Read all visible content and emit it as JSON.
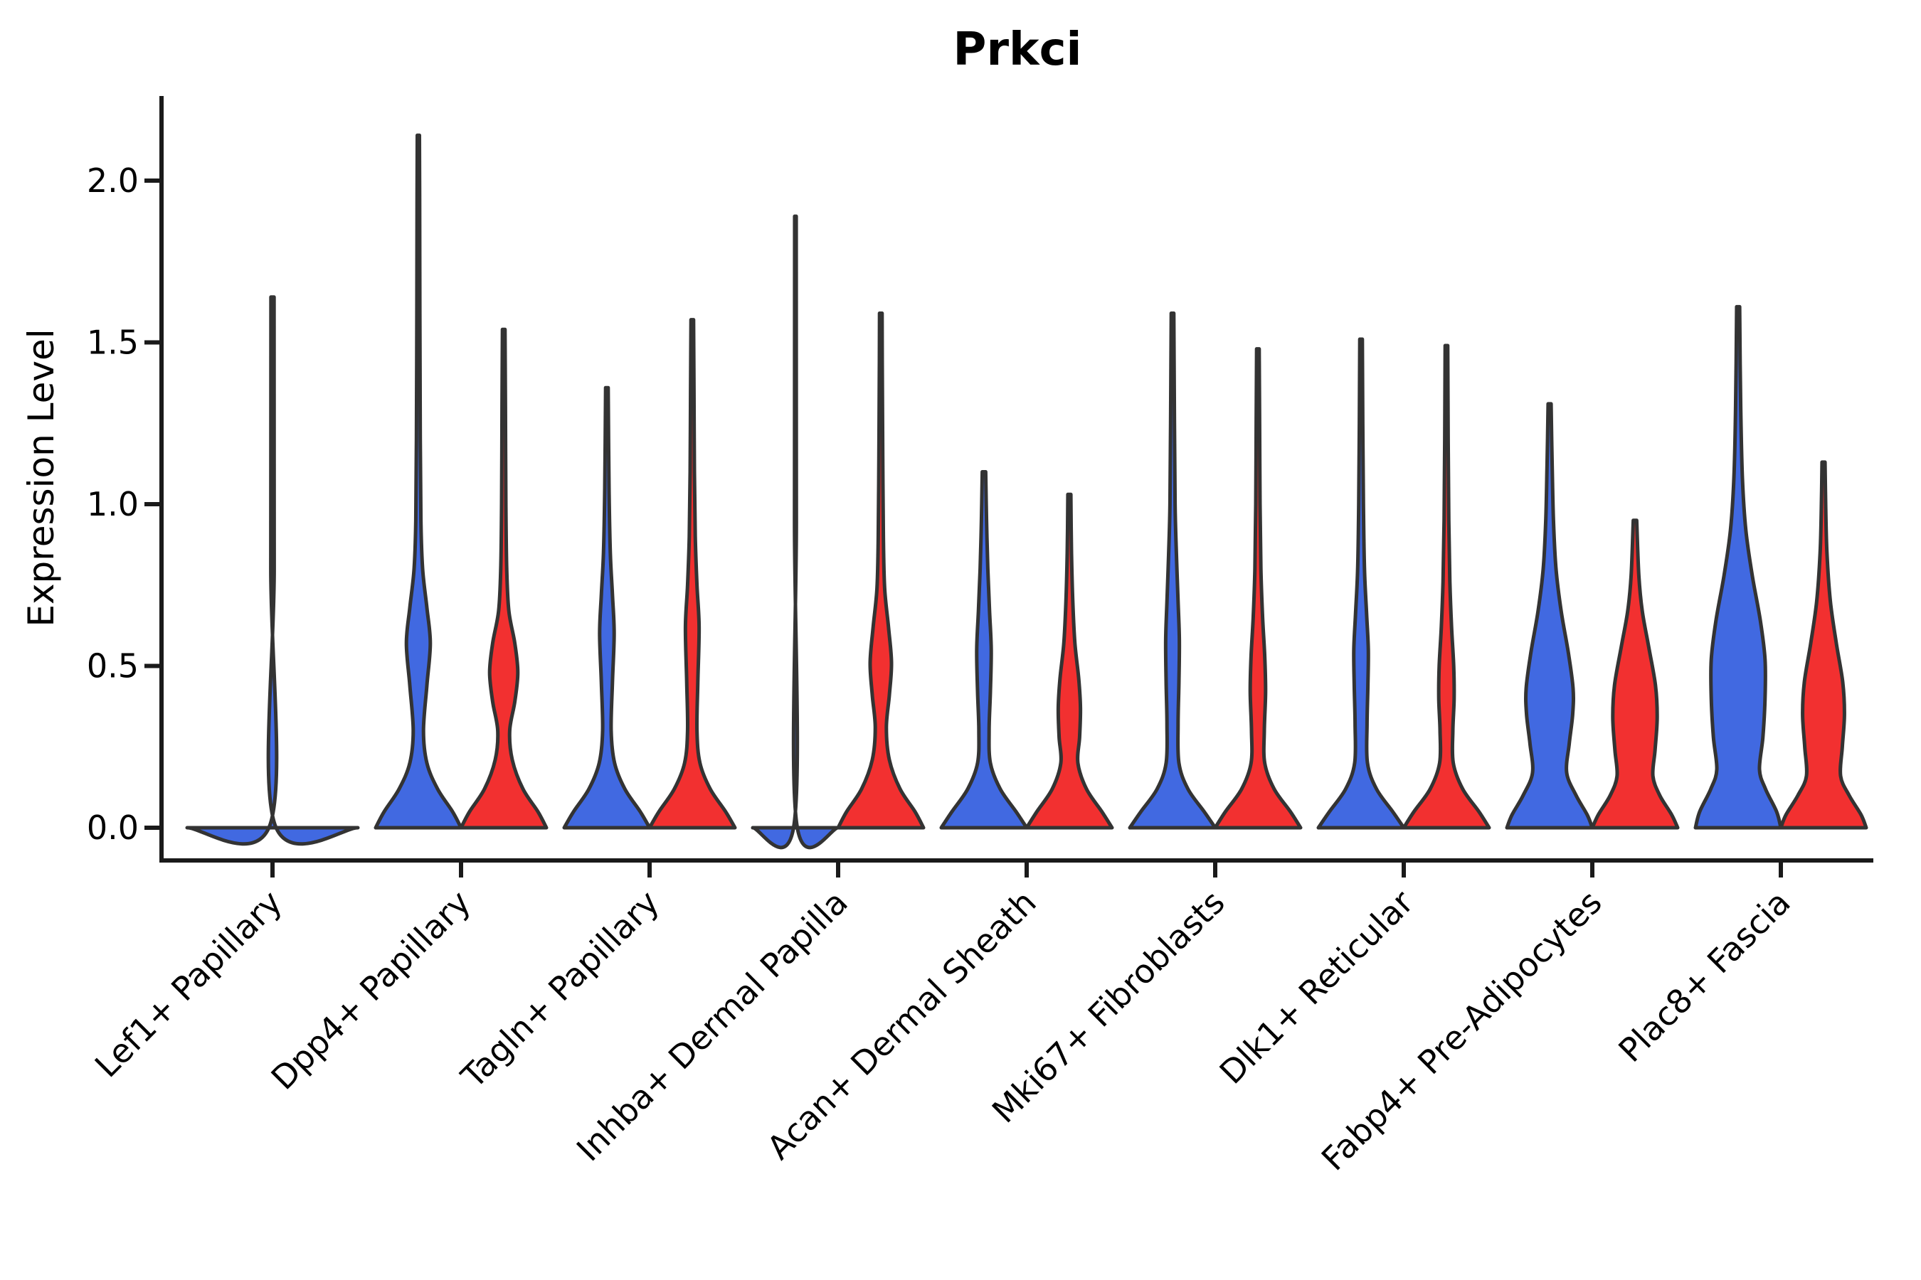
{
  "figure": {
    "title": "Prkci",
    "y_axis_label": "Expression Level"
  },
  "y_axis": {
    "tick_labels": [
      "0.0",
      "0.5",
      "1.0",
      "1.5",
      "2.0"
    ],
    "tick_values": [
      0.0,
      0.5,
      1.0,
      1.5,
      2.0
    ],
    "range_max": 2.25
  },
  "colors": {
    "blue_fill": "#4169E1",
    "red_fill": "#F23030",
    "outline": "#333333",
    "axis": "#1a1a1a",
    "text": "#000000"
  },
  "chart_data": {
    "type": "violin",
    "title": "Prkci",
    "ylabel": "Expression Level",
    "ylim": [
      0,
      2.25
    ],
    "grid": false,
    "legend": "none",
    "categories": [
      "Lef1+ Papillary",
      "Dpp4+ Papillary",
      "Tagln+ Papillary",
      "Inhba+ Dermal Papilla",
      "Acan+ Dermal Sheath",
      "Mki67+ Fibroblasts",
      "Dlk1+ Reticular",
      "Fabp4+ Pre-Adipocytes",
      "Plac8+ Fascia"
    ],
    "series": [
      {
        "name": "blue",
        "max_values": [
          1.64,
          2.14,
          1.36,
          1.89,
          1.1,
          1.59,
          1.51,
          1.31,
          1.61
        ]
      },
      {
        "name": "red",
        "max_values": [
          null,
          1.54,
          1.57,
          1.59,
          1.03,
          1.48,
          1.49,
          0.95,
          1.13
        ]
      }
    ],
    "groups": [
      {
        "label": "Lef1+ Papillary",
        "violins": [
          {
            "color": "blue",
            "position": "center",
            "width_scale": 2,
            "tip": 1.64,
            "flat": true,
            "profile": [
              [
                0,
                1.0
              ],
              [
                0.012,
                0.025
              ],
              [
                0.8,
                0.02
              ],
              [
                1.64,
                0.018
              ]
            ]
          }
        ]
      },
      {
        "label": "Dpp4+ Papillary",
        "violins": [
          {
            "color": "blue",
            "position": "left",
            "width_scale": 1,
            "tip": 2.14,
            "profile": [
              [
                0,
                1.0
              ],
              [
                0.05,
                0.8
              ],
              [
                0.12,
                0.45
              ],
              [
                0.2,
                0.2
              ],
              [
                0.3,
                0.12
              ],
              [
                0.44,
                0.2
              ],
              [
                0.57,
                0.28
              ],
              [
                0.68,
                0.2
              ],
              [
                0.8,
                0.1
              ],
              [
                0.95,
                0.06
              ],
              [
                1.2,
                0.045
              ],
              [
                1.6,
                0.035
              ],
              [
                1.95,
                0.03
              ],
              [
                2.14,
                0.025
              ]
            ]
          },
          {
            "color": "red",
            "position": "right",
            "width_scale": 1,
            "tip": 1.54,
            "profile": [
              [
                0,
                1.0
              ],
              [
                0.05,
                0.8
              ],
              [
                0.12,
                0.45
              ],
              [
                0.21,
                0.2
              ],
              [
                0.3,
                0.14
              ],
              [
                0.39,
                0.26
              ],
              [
                0.48,
                0.33
              ],
              [
                0.57,
                0.26
              ],
              [
                0.67,
                0.12
              ],
              [
                0.8,
                0.07
              ],
              [
                1.0,
                0.05
              ],
              [
                1.3,
                0.04
              ],
              [
                1.54,
                0.03
              ]
            ]
          }
        ]
      },
      {
        "label": "Tagln+ Papillary",
        "violins": [
          {
            "color": "blue",
            "position": "left",
            "width_scale": 1,
            "tip": 1.36,
            "profile": [
              [
                0,
                1.0
              ],
              [
                0.05,
                0.78
              ],
              [
                0.12,
                0.42
              ],
              [
                0.2,
                0.18
              ],
              [
                0.3,
                0.1
              ],
              [
                0.45,
                0.13
              ],
              [
                0.6,
                0.17
              ],
              [
                0.72,
                0.13
              ],
              [
                0.85,
                0.08
              ],
              [
                1.05,
                0.05
              ],
              [
                1.36,
                0.03
              ]
            ]
          },
          {
            "color": "red",
            "position": "right",
            "width_scale": 1,
            "tip": 1.57,
            "profile": [
              [
                0,
                1.0
              ],
              [
                0.05,
                0.78
              ],
              [
                0.12,
                0.42
              ],
              [
                0.2,
                0.18
              ],
              [
                0.3,
                0.11
              ],
              [
                0.45,
                0.13
              ],
              [
                0.62,
                0.16
              ],
              [
                0.75,
                0.11
              ],
              [
                0.9,
                0.07
              ],
              [
                1.1,
                0.05
              ],
              [
                1.35,
                0.04
              ],
              [
                1.57,
                0.03
              ]
            ]
          }
        ]
      },
      {
        "label": "Inhba+ Dermal Papilla",
        "violins": [
          {
            "color": "blue",
            "position": "left",
            "width_scale": 1,
            "tip": 1.89,
            "flat": true,
            "profile": [
              [
                0,
                1.0
              ],
              [
                0.012,
                0.03
              ],
              [
                0.95,
                0.022
              ],
              [
                1.89,
                0.018
              ]
            ]
          },
          {
            "color": "red",
            "position": "right",
            "width_scale": 1,
            "tip": 1.59,
            "profile": [
              [
                0,
                1.0
              ],
              [
                0.05,
                0.8
              ],
              [
                0.12,
                0.45
              ],
              [
                0.21,
                0.2
              ],
              [
                0.31,
                0.13
              ],
              [
                0.41,
                0.2
              ],
              [
                0.51,
                0.25
              ],
              [
                0.62,
                0.18
              ],
              [
                0.74,
                0.09
              ],
              [
                0.9,
                0.06
              ],
              [
                1.15,
                0.045
              ],
              [
                1.4,
                0.035
              ],
              [
                1.59,
                0.03
              ]
            ]
          }
        ]
      },
      {
        "label": "Acan+ Dermal Sheath",
        "violins": [
          {
            "color": "blue",
            "position": "left",
            "width_scale": 1,
            "tip": 1.1,
            "profile": [
              [
                0,
                1.0
              ],
              [
                0.05,
                0.75
              ],
              [
                0.12,
                0.38
              ],
              [
                0.2,
                0.15
              ],
              [
                0.3,
                0.12
              ],
              [
                0.42,
                0.15
              ],
              [
                0.55,
                0.17
              ],
              [
                0.67,
                0.13
              ],
              [
                0.8,
                0.09
              ],
              [
                0.95,
                0.06
              ],
              [
                1.1,
                0.04
              ]
            ]
          },
          {
            "color": "red",
            "position": "right",
            "width_scale": 1,
            "tip": 1.03,
            "profile": [
              [
                0,
                1.0
              ],
              [
                0.05,
                0.76
              ],
              [
                0.12,
                0.4
              ],
              [
                0.2,
                0.2
              ],
              [
                0.28,
                0.24
              ],
              [
                0.37,
                0.26
              ],
              [
                0.46,
                0.22
              ],
              [
                0.57,
                0.13
              ],
              [
                0.7,
                0.08
              ],
              [
                0.85,
                0.05
              ],
              [
                1.03,
                0.035
              ]
            ]
          }
        ]
      },
      {
        "label": "Mki67+ Fibroblasts",
        "violins": [
          {
            "color": "blue",
            "position": "left",
            "width_scale": 1,
            "tip": 1.59,
            "profile": [
              [
                0,
                1.0
              ],
              [
                0.05,
                0.74
              ],
              [
                0.12,
                0.36
              ],
              [
                0.2,
                0.15
              ],
              [
                0.32,
                0.13
              ],
              [
                0.45,
                0.15
              ],
              [
                0.58,
                0.16
              ],
              [
                0.7,
                0.13
              ],
              [
                0.85,
                0.09
              ],
              [
                1.0,
                0.06
              ],
              [
                1.25,
                0.045
              ],
              [
                1.59,
                0.03
              ]
            ]
          },
          {
            "color": "red",
            "position": "right",
            "width_scale": 1,
            "tip": 1.48,
            "profile": [
              [
                0,
                1.0
              ],
              [
                0.05,
                0.76
              ],
              [
                0.12,
                0.38
              ],
              [
                0.2,
                0.16
              ],
              [
                0.3,
                0.15
              ],
              [
                0.42,
                0.18
              ],
              [
                0.53,
                0.16
              ],
              [
                0.65,
                0.11
              ],
              [
                0.8,
                0.07
              ],
              [
                1.0,
                0.05
              ],
              [
                1.25,
                0.04
              ],
              [
                1.48,
                0.03
              ]
            ]
          }
        ]
      },
      {
        "label": "Dlk1+ Reticular",
        "violins": [
          {
            "color": "blue",
            "position": "left",
            "width_scale": 1,
            "tip": 1.51,
            "profile": [
              [
                0,
                1.0
              ],
              [
                0.05,
                0.74
              ],
              [
                0.12,
                0.36
              ],
              [
                0.2,
                0.15
              ],
              [
                0.32,
                0.14
              ],
              [
                0.44,
                0.16
              ],
              [
                0.55,
                0.17
              ],
              [
                0.66,
                0.13
              ],
              [
                0.8,
                0.08
              ],
              [
                1.0,
                0.055
              ],
              [
                1.25,
                0.04
              ],
              [
                1.51,
                0.03
              ]
            ]
          },
          {
            "color": "red",
            "position": "right",
            "width_scale": 1,
            "tip": 1.49,
            "profile": [
              [
                0,
                1.0
              ],
              [
                0.05,
                0.76
              ],
              [
                0.12,
                0.38
              ],
              [
                0.2,
                0.16
              ],
              [
                0.3,
                0.15
              ],
              [
                0.4,
                0.18
              ],
              [
                0.5,
                0.17
              ],
              [
                0.62,
                0.12
              ],
              [
                0.76,
                0.08
              ],
              [
                0.95,
                0.055
              ],
              [
                1.2,
                0.04
              ],
              [
                1.49,
                0.03
              ]
            ]
          }
        ]
      },
      {
        "label": "Fabp4+ Pre-Adipocytes",
        "violins": [
          {
            "color": "blue",
            "position": "left",
            "width_scale": 1,
            "tip": 1.31,
            "profile": [
              [
                0,
                1.0
              ],
              [
                0.04,
                0.88
              ],
              [
                0.1,
                0.62
              ],
              [
                0.17,
                0.4
              ],
              [
                0.26,
                0.46
              ],
              [
                0.35,
                0.54
              ],
              [
                0.43,
                0.55
              ],
              [
                0.54,
                0.44
              ],
              [
                0.67,
                0.27
              ],
              [
                0.8,
                0.15
              ],
              [
                0.95,
                0.09
              ],
              [
                1.12,
                0.06
              ],
              [
                1.31,
                0.035
              ]
            ]
          },
          {
            "color": "red",
            "position": "right",
            "width_scale": 1,
            "tip": 0.95,
            "profile": [
              [
                0,
                1.0
              ],
              [
                0.04,
                0.86
              ],
              [
                0.1,
                0.58
              ],
              [
                0.16,
                0.42
              ],
              [
                0.24,
                0.47
              ],
              [
                0.34,
                0.52
              ],
              [
                0.44,
                0.48
              ],
              [
                0.56,
                0.32
              ],
              [
                0.67,
                0.17
              ],
              [
                0.78,
                0.09
              ],
              [
                0.95,
                0.04
              ]
            ]
          }
        ]
      },
      {
        "label": "Plac8+ Fascia",
        "violins": [
          {
            "color": "blue",
            "position": "left",
            "width_scale": 1,
            "tip": 1.61,
            "profile": [
              [
                0,
                1.0
              ],
              [
                0.05,
                0.9
              ],
              [
                0.12,
                0.64
              ],
              [
                0.18,
                0.5
              ],
              [
                0.28,
                0.58
              ],
              [
                0.4,
                0.63
              ],
              [
                0.52,
                0.63
              ],
              [
                0.64,
                0.52
              ],
              [
                0.78,
                0.33
              ],
              [
                0.92,
                0.18
              ],
              [
                1.08,
                0.1
              ],
              [
                1.3,
                0.06
              ],
              [
                1.61,
                0.035
              ]
            ]
          },
          {
            "color": "red",
            "position": "right",
            "width_scale": 1,
            "tip": 1.13,
            "profile": [
              [
                0,
                1.0
              ],
              [
                0.04,
                0.88
              ],
              [
                0.1,
                0.6
              ],
              [
                0.16,
                0.4
              ],
              [
                0.25,
                0.44
              ],
              [
                0.35,
                0.49
              ],
              [
                0.45,
                0.45
              ],
              [
                0.57,
                0.3
              ],
              [
                0.7,
                0.16
              ],
              [
                0.85,
                0.08
              ],
              [
                1.0,
                0.05
              ],
              [
                1.13,
                0.035
              ]
            ]
          }
        ]
      }
    ]
  }
}
